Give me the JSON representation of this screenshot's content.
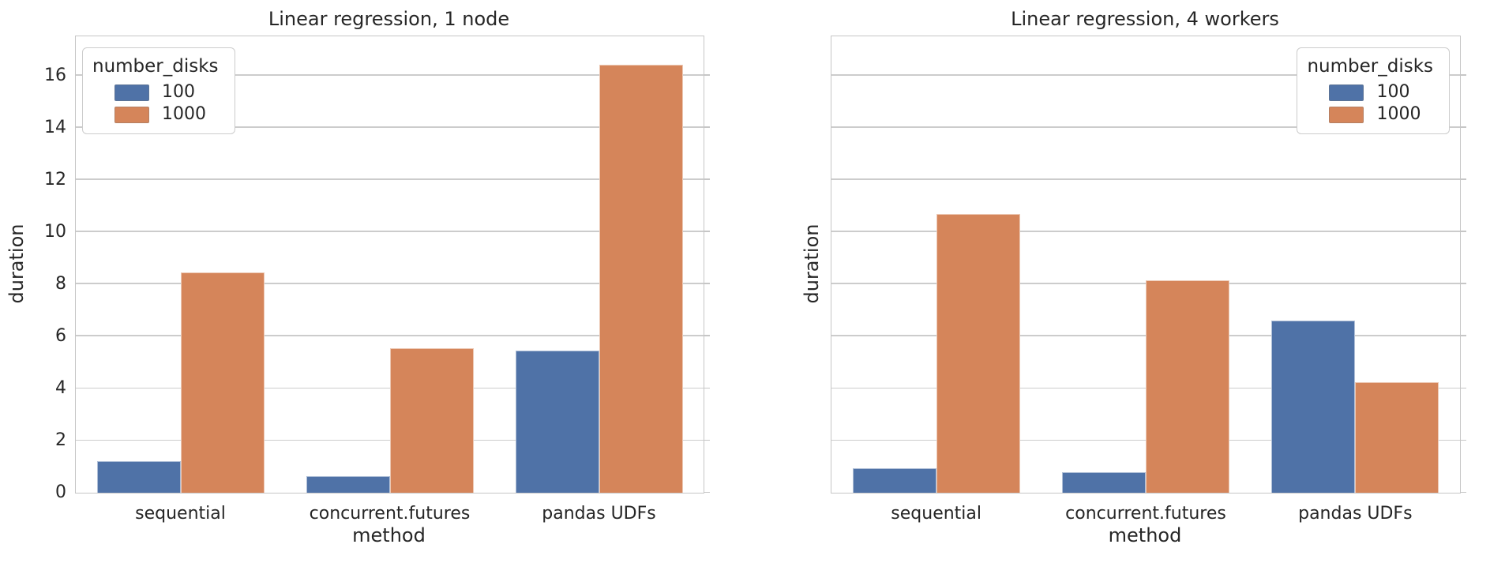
{
  "palette": {
    "series_100": "#4F72A7",
    "series_1000": "#D5855A",
    "grid": "#cccccc",
    "spine": "#c6c6c6",
    "text": "#262626",
    "background": "#ffffff"
  },
  "chart_data": [
    {
      "type": "bar",
      "title": "Linear regression, 1 node",
      "xlabel": "method",
      "ylabel": "duration",
      "legend_title": "number_disks",
      "legend_position": "top-left",
      "legend_entries": [
        "100",
        "1000"
      ],
      "categories": [
        "sequential",
        "concurrent.futures",
        "pandas UDFs"
      ],
      "series": [
        {
          "name": "100",
          "color_key": "series_100",
          "values": [
            1.2,
            0.65,
            5.45
          ]
        },
        {
          "name": "1000",
          "color_key": "series_1000",
          "values": [
            8.45,
            5.55,
            16.4
          ]
        }
      ],
      "ylim": [
        0,
        17.5
      ],
      "yticks": [
        0,
        2,
        4,
        6,
        8,
        10,
        12,
        14,
        16
      ],
      "ytick_labels_visible": true,
      "grid": true
    },
    {
      "type": "bar",
      "title": "Linear regression, 4 workers",
      "xlabel": "method",
      "ylabel": "duration",
      "legend_title": "number_disks",
      "legend_position": "top-right",
      "legend_entries": [
        "100",
        "1000"
      ],
      "categories": [
        "sequential",
        "concurrent.futures",
        "pandas UDFs"
      ],
      "series": [
        {
          "name": "100",
          "color_key": "series_100",
          "values": [
            0.95,
            0.8,
            6.6
          ]
        },
        {
          "name": "1000",
          "color_key": "series_1000",
          "values": [
            10.7,
            8.15,
            4.25
          ]
        }
      ],
      "ylim": [
        0,
        17.5
      ],
      "yticks": [
        0,
        2,
        4,
        6,
        8,
        10,
        12,
        14,
        16
      ],
      "ytick_labels_visible": false,
      "grid": true
    }
  ]
}
